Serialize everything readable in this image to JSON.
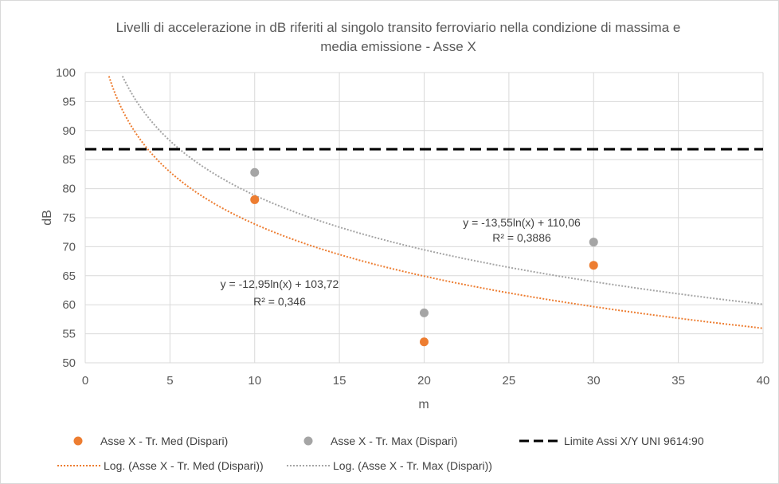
{
  "chart_data": {
    "type": "scatter",
    "title_lines": [
      "Livelli di accelerazione in dB riferiti al singolo transito ferroviario nella condizione di massima e",
      "media emissione - Asse X"
    ],
    "xlabel": "m",
    "ylabel": "dB",
    "xlim": [
      0,
      40
    ],
    "ylim": [
      50,
      100
    ],
    "x_ticks": [
      "0",
      "5",
      "10",
      "15",
      "20",
      "25",
      "30",
      "35",
      "40"
    ],
    "y_ticks": [
      "50",
      "55",
      "60",
      "65",
      "70",
      "75",
      "80",
      "85",
      "90",
      "95",
      "100"
    ],
    "grid": true,
    "legend_position": "bottom",
    "series": [
      {
        "name": "Asse X - Tr. Med (Dispari)",
        "kind": "points",
        "color": "#ed7d31",
        "x": [
          10,
          20,
          30
        ],
        "y": [
          78.1,
          53.6,
          66.8
        ]
      },
      {
        "name": "Asse X - Tr. Max (Dispari)",
        "kind": "points",
        "color": "#a5a5a5",
        "x": [
          10,
          20,
          30
        ],
        "y": [
          82.8,
          58.6,
          70.8
        ]
      },
      {
        "name": "Limite Assi X/Y UNI 9614:90",
        "kind": "hline",
        "color": "#000000",
        "y": 86.8
      }
    ],
    "trendlines": [
      {
        "name": "Log. (Asse X - Tr. Med (Dispari))",
        "color": "#ed7d31",
        "a": -12.95,
        "b": 103.72,
        "equation": "y = -12,95ln(x) + 103,72",
        "r2": "R² = 0,346"
      },
      {
        "name": "Log. (Asse X - Tr. Max (Dispari))",
        "color": "#a5a5a5",
        "a": -13.55,
        "b": 110.06,
        "equation": "y = -13,55ln(x) + 110,06",
        "r2": "R² = 0,3886"
      }
    ]
  }
}
